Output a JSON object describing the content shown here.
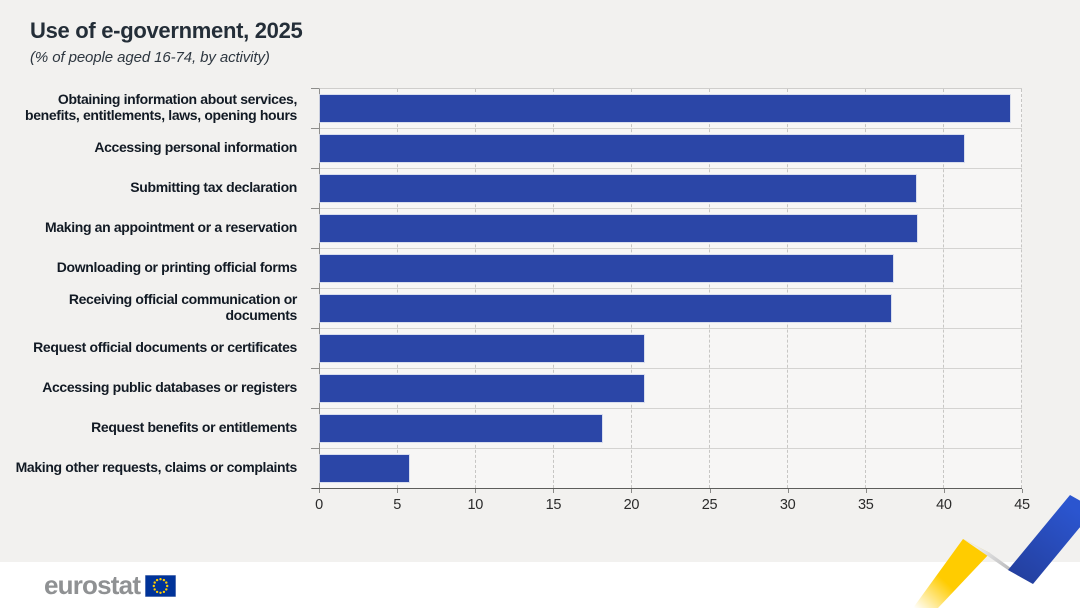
{
  "header": {
    "title": "Use of e-government, 2025",
    "subtitle": "(% of  people aged 16-74,  by activity)"
  },
  "chart_data": {
    "type": "bar",
    "orientation": "horizontal",
    "title": "Use of e-government, 2025",
    "subtitle": "(% of people aged 16-74, by activity)",
    "categories": [
      "Obtaining information about services, benefits, entitlements, laws, opening hours",
      "Accessing personal information",
      "Submitting tax declaration",
      "Making an appointment or a reservation",
      "Downloading or printing official forms",
      "Receiving official communication or documents",
      "Request official documents or certificates",
      "Accessing public databases or registers",
      "Request benefits or entitlements",
      "Making other requests, claims or complaints"
    ],
    "values": [
      44.2,
      41.3,
      38.2,
      38.3,
      36.7,
      36.6,
      20.8,
      20.8,
      18.1,
      5.7
    ],
    "xlabel": "",
    "ylabel": "",
    "xlim": [
      0,
      45
    ],
    "xticks": [
      0,
      5,
      10,
      15,
      20,
      25,
      30,
      35,
      40,
      45
    ],
    "grid": "vertical-dashed",
    "legend": "none",
    "bar_color": "#2B46A7"
  },
  "footer": {
    "logo_text": "eurostat"
  },
  "colors": {
    "bar_blue": "#2B46A7",
    "ribbon_blue": "#2B52C8",
    "ribbon_yellow": "#FFCC00",
    "ribbon_gray": "#B7B7B9",
    "flag_blue": "#003399",
    "flag_stars": "#FFCC00",
    "background": "#f2f1ef",
    "footer_background": "#ffffff"
  }
}
